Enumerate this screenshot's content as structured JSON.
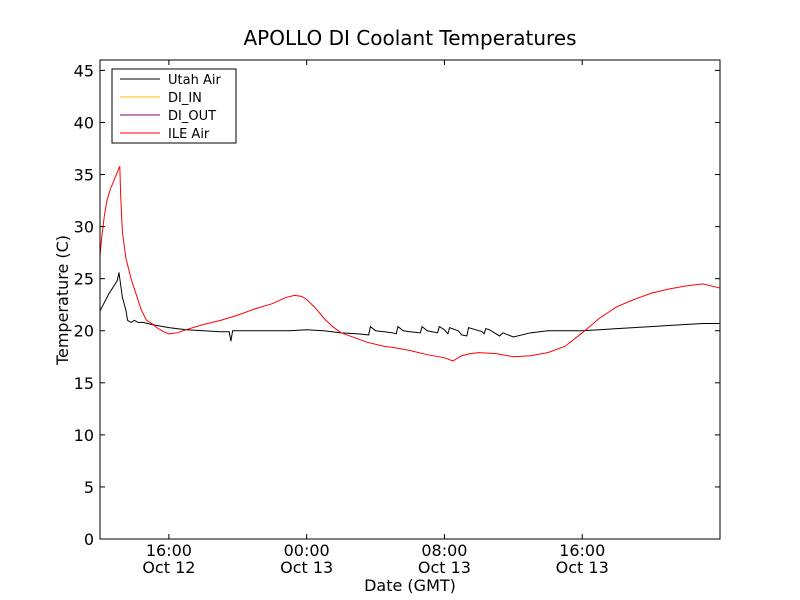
{
  "chart_data": {
    "type": "line",
    "title": "APOLLO DI Coolant Temperatures",
    "xlabel": "Date (GMT)",
    "ylabel": "Temperature (C)",
    "xlim_hours": [
      12,
      48
    ],
    "ylim": [
      0,
      46
    ],
    "yticks": [
      0,
      5,
      10,
      15,
      20,
      25,
      30,
      35,
      40,
      45
    ],
    "xticks": [
      {
        "hour": 16,
        "time": "16:00",
        "date": "Oct 12"
      },
      {
        "hour": 24,
        "time": "00:00",
        "date": "Oct 13"
      },
      {
        "hour": 32,
        "time": "08:00",
        "date": "Oct 13"
      },
      {
        "hour": 40,
        "time": "16:00",
        "date": "Oct 13"
      }
    ],
    "grid": false,
    "legend_position": "top-left",
    "series": [
      {
        "name": "Utah Air",
        "color": "#000000",
        "points": [
          [
            12.0,
            21.9
          ],
          [
            12.5,
            23.5
          ],
          [
            13.0,
            24.8
          ],
          [
            13.1,
            25.6
          ],
          [
            13.3,
            23.2
          ],
          [
            13.5,
            22.0
          ],
          [
            13.6,
            21.0
          ],
          [
            13.8,
            20.8
          ],
          [
            14.0,
            21.0
          ],
          [
            14.2,
            20.8
          ],
          [
            14.5,
            20.8
          ],
          [
            15.0,
            20.6
          ],
          [
            16.0,
            20.3
          ],
          [
            17.0,
            20.1
          ],
          [
            18.0,
            20.0
          ],
          [
            19.0,
            19.9
          ],
          [
            19.5,
            19.9
          ],
          [
            19.6,
            19.0
          ],
          [
            19.7,
            20.0
          ],
          [
            20.0,
            20.0
          ],
          [
            21.0,
            20.0
          ],
          [
            22.0,
            20.0
          ],
          [
            23.0,
            20.0
          ],
          [
            24.0,
            20.1
          ],
          [
            25.0,
            20.0
          ],
          [
            26.0,
            19.8
          ],
          [
            27.0,
            19.7
          ],
          [
            27.6,
            19.6
          ],
          [
            27.7,
            20.4
          ],
          [
            28.0,
            20.0
          ],
          [
            29.0,
            19.8
          ],
          [
            29.2,
            19.7
          ],
          [
            29.3,
            20.4
          ],
          [
            29.6,
            20.0
          ],
          [
            30.0,
            19.9
          ],
          [
            30.6,
            19.8
          ],
          [
            30.7,
            20.4
          ],
          [
            31.0,
            20.0
          ],
          [
            31.6,
            19.8
          ],
          [
            31.7,
            20.4
          ],
          [
            32.0,
            20.1
          ],
          [
            32.2,
            19.7
          ],
          [
            32.3,
            20.3
          ],
          [
            32.8,
            20.0
          ],
          [
            33.0,
            19.6
          ],
          [
            33.3,
            19.5
          ],
          [
            33.4,
            20.3
          ],
          [
            33.8,
            20.1
          ],
          [
            34.2,
            19.9
          ],
          [
            34.3,
            19.7
          ],
          [
            34.4,
            20.2
          ],
          [
            34.6,
            20.1
          ],
          [
            35.2,
            19.5
          ],
          [
            35.4,
            19.8
          ],
          [
            36.0,
            19.4
          ],
          [
            37.0,
            19.8
          ],
          [
            38.0,
            20.0
          ],
          [
            39.0,
            20.0
          ],
          [
            40.0,
            20.0
          ],
          [
            41.0,
            20.1
          ],
          [
            42.0,
            20.2
          ],
          [
            43.0,
            20.3
          ],
          [
            44.0,
            20.4
          ],
          [
            45.0,
            20.5
          ],
          [
            46.0,
            20.6
          ],
          [
            47.0,
            20.7
          ],
          [
            48.0,
            20.7
          ]
        ]
      },
      {
        "name": "DI_IN",
        "color": "#ffbf00",
        "points": []
      },
      {
        "name": "DI_OUT",
        "color": "#7f007f",
        "points": []
      },
      {
        "name": "ILE Air",
        "color": "#ff0000",
        "points": [
          [
            12.0,
            27.2
          ],
          [
            12.1,
            29.0
          ],
          [
            12.25,
            31.0
          ],
          [
            12.4,
            32.5
          ],
          [
            12.6,
            33.6
          ],
          [
            12.8,
            34.4
          ],
          [
            13.0,
            35.2
          ],
          [
            13.15,
            35.8
          ],
          [
            13.2,
            33.0
          ],
          [
            13.3,
            29.5
          ],
          [
            13.5,
            27.0
          ],
          [
            13.8,
            25.0
          ],
          [
            14.1,
            23.5
          ],
          [
            14.4,
            22.0
          ],
          [
            14.7,
            21.0
          ],
          [
            15.0,
            20.7
          ],
          [
            15.3,
            20.3
          ],
          [
            15.7,
            19.9
          ],
          [
            16.0,
            19.7
          ],
          [
            16.5,
            19.8
          ],
          [
            17.0,
            20.1
          ],
          [
            18.0,
            20.6
          ],
          [
            19.0,
            21.0
          ],
          [
            20.0,
            21.5
          ],
          [
            21.0,
            22.1
          ],
          [
            22.0,
            22.6
          ],
          [
            22.8,
            23.2
          ],
          [
            23.3,
            23.4
          ],
          [
            23.7,
            23.3
          ],
          [
            24.0,
            23.0
          ],
          [
            24.5,
            22.2
          ],
          [
            25.0,
            21.2
          ],
          [
            25.5,
            20.4
          ],
          [
            26.0,
            19.8
          ],
          [
            26.5,
            19.5
          ],
          [
            27.0,
            19.2
          ],
          [
            27.5,
            18.9
          ],
          [
            28.0,
            18.7
          ],
          [
            28.5,
            18.5
          ],
          [
            29.0,
            18.4
          ],
          [
            30.0,
            18.1
          ],
          [
            31.0,
            17.7
          ],
          [
            32.0,
            17.4
          ],
          [
            32.5,
            17.1
          ],
          [
            33.0,
            17.6
          ],
          [
            33.5,
            17.8
          ],
          [
            34.0,
            17.9
          ],
          [
            35.0,
            17.8
          ],
          [
            36.0,
            17.5
          ],
          [
            37.0,
            17.6
          ],
          [
            38.0,
            17.9
          ],
          [
            39.0,
            18.5
          ],
          [
            40.0,
            19.8
          ],
          [
            41.0,
            21.2
          ],
          [
            42.0,
            22.3
          ],
          [
            43.0,
            23.0
          ],
          [
            44.0,
            23.6
          ],
          [
            45.0,
            24.0
          ],
          [
            46.0,
            24.3
          ],
          [
            47.0,
            24.5
          ],
          [
            48.0,
            24.1
          ]
        ]
      }
    ]
  }
}
